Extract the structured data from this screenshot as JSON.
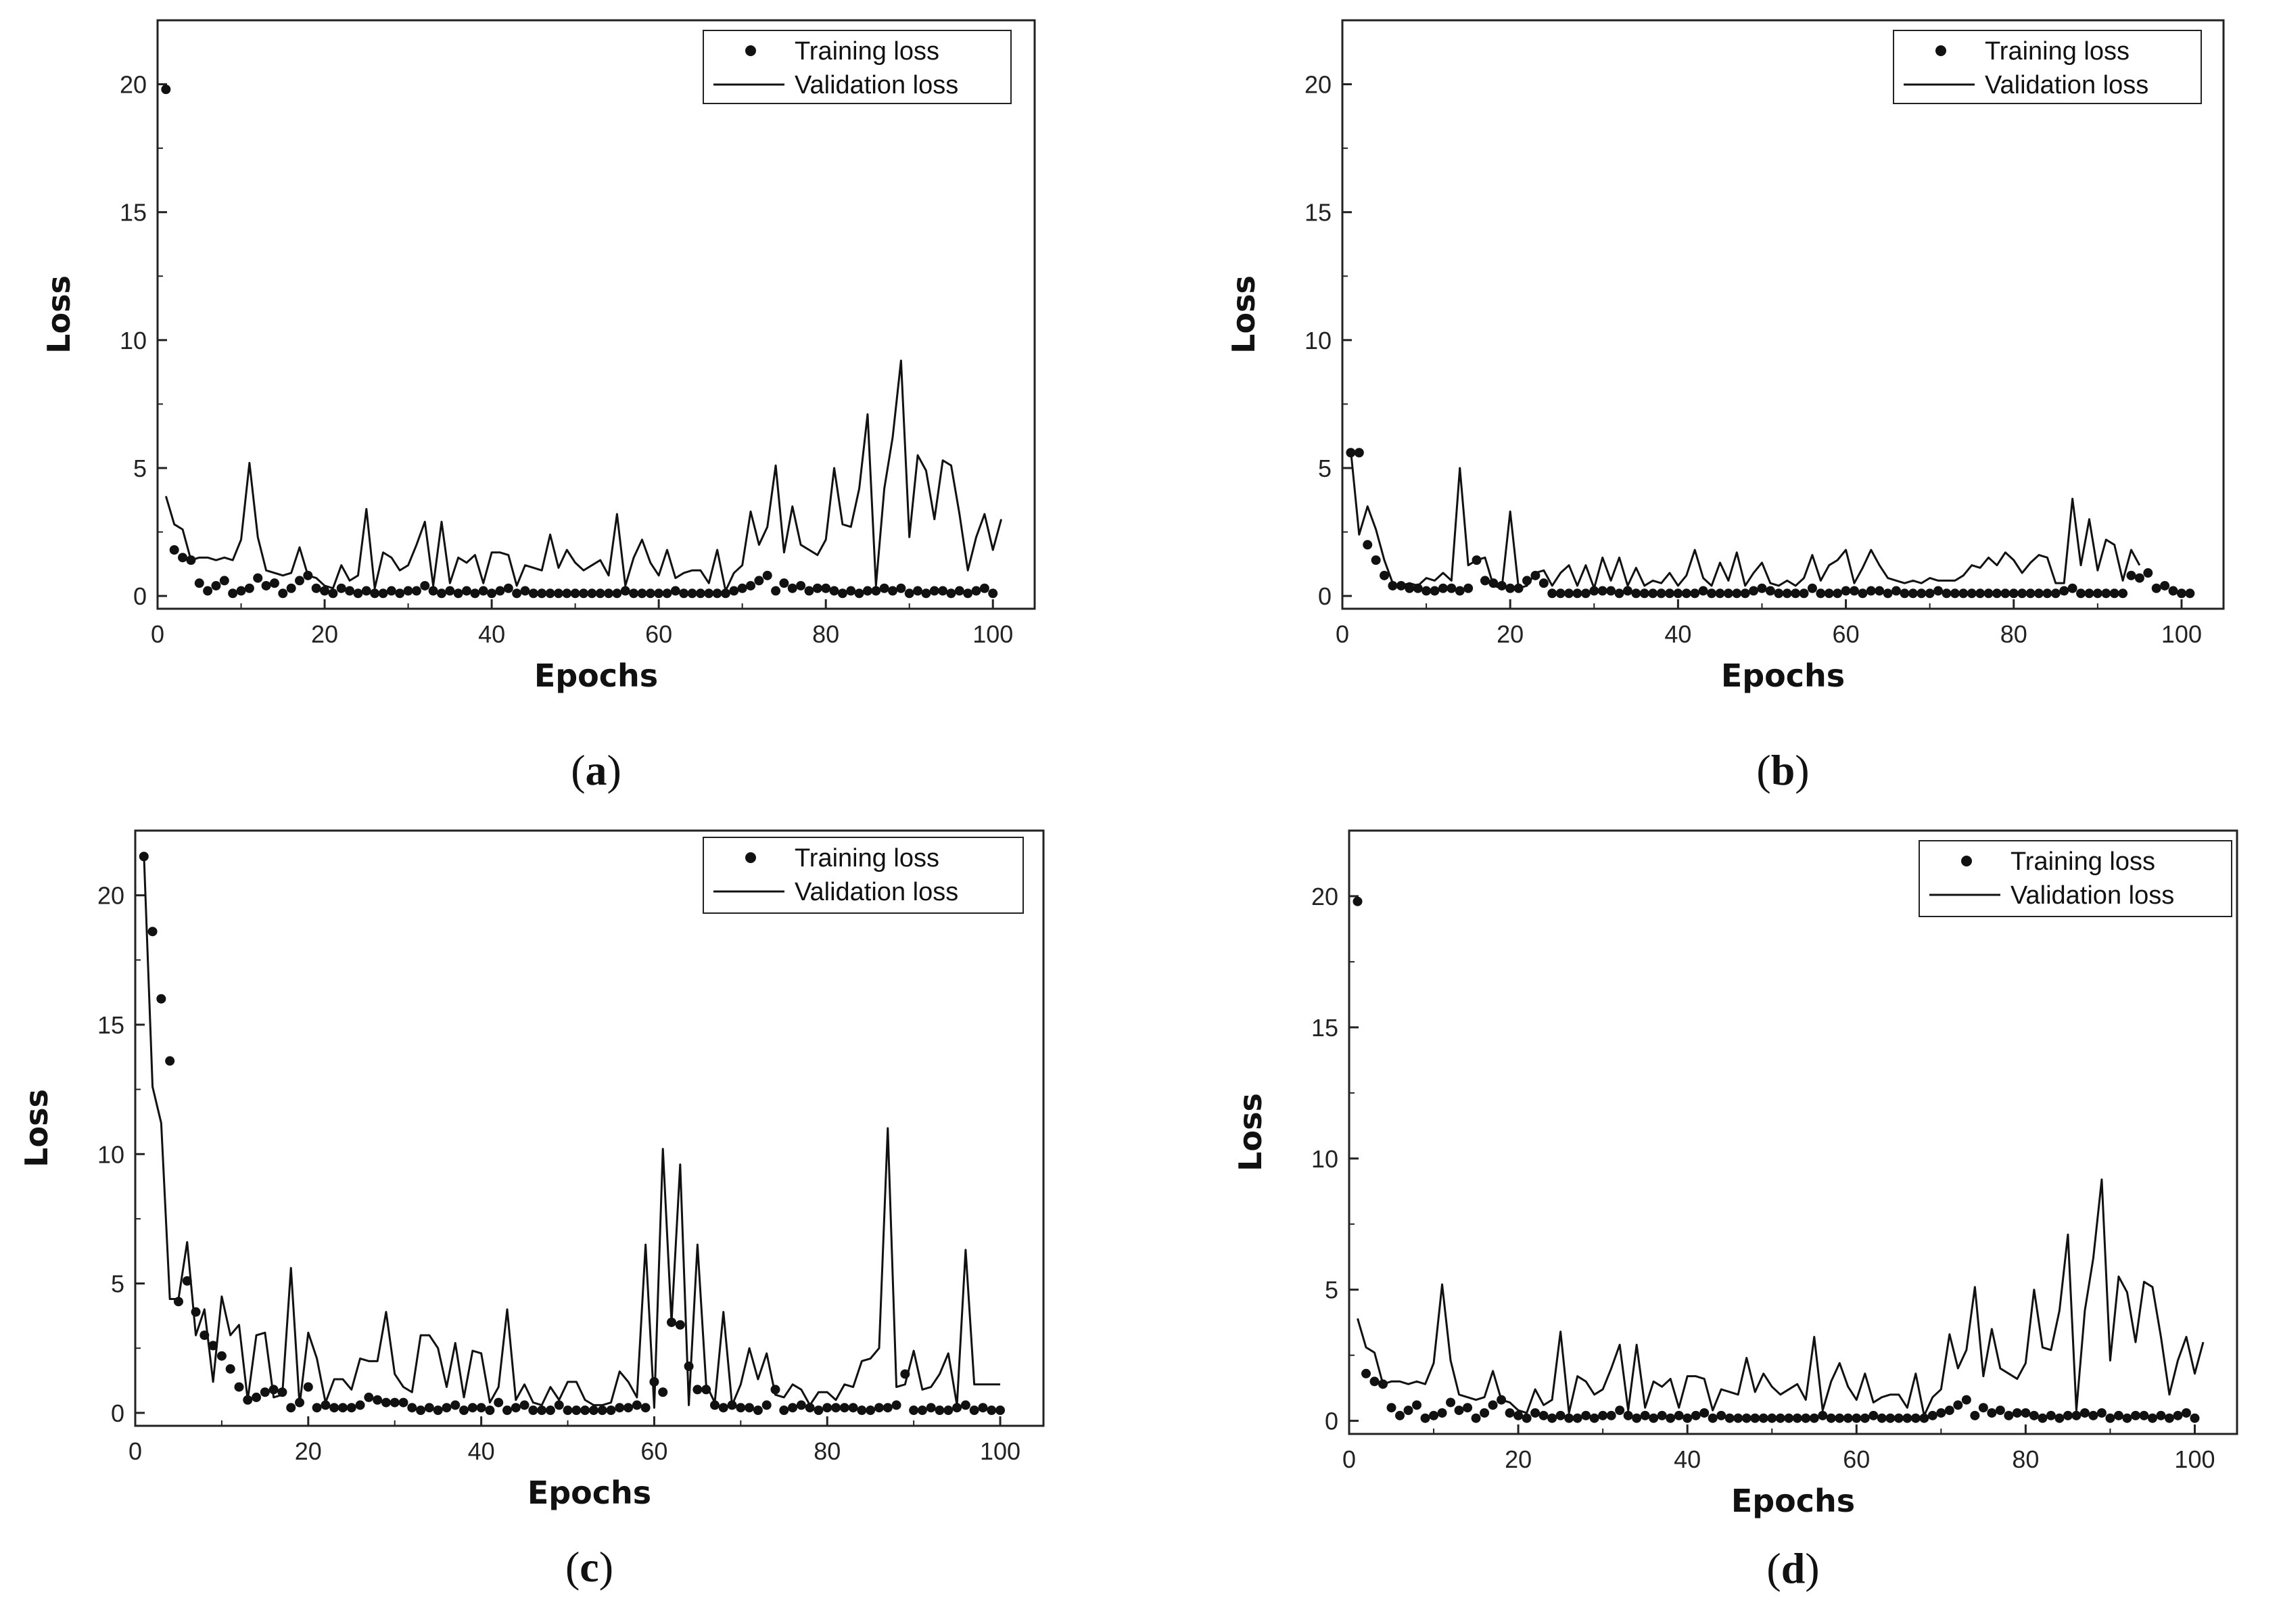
{
  "chart_data": [
    {
      "id": "a",
      "type": "scatter+line",
      "caption_letter": "a",
      "xlabel": "Epochs",
      "ylabel": "Loss",
      "xlim": [
        0,
        105
      ],
      "ylim": [
        -0.5,
        22.5
      ],
      "xticks": [
        "0",
        "20",
        "40",
        "60",
        "80",
        "100"
      ],
      "yticks": [
        "0",
        "5",
        "10",
        "15",
        "20"
      ],
      "legend_position": "top-right",
      "series": [
        {
          "name": "Training loss",
          "style": "dots",
          "values": [
            19.8,
            1.8,
            1.5,
            1.4,
            0.5,
            0.2,
            0.4,
            0.6,
            0.1,
            0.2,
            0.3,
            0.7,
            0.4,
            0.5,
            0.1,
            0.3,
            0.6,
            0.8,
            0.3,
            0.2,
            0.1,
            0.3,
            0.2,
            0.1,
            0.2,
            0.1,
            0.1,
            0.2,
            0.1,
            0.2,
            0.2,
            0.4,
            0.2,
            0.1,
            0.2,
            0.1,
            0.2,
            0.1,
            0.2,
            0.1,
            0.2,
            0.3,
            0.1,
            0.2,
            0.1,
            0.1,
            0.1,
            0.1,
            0.1,
            0.1,
            0.1,
            0.1,
            0.1,
            0.1,
            0.1,
            0.2,
            0.1,
            0.1,
            0.1,
            0.1,
            0.1,
            0.2,
            0.1,
            0.1,
            0.1,
            0.1,
            0.1,
            0.1,
            0.2,
            0.3,
            0.4,
            0.6,
            0.8,
            0.2,
            0.5,
            0.3,
            0.4,
            0.2,
            0.3,
            0.3,
            0.2,
            0.1,
            0.2,
            0.1,
            0.2,
            0.2,
            0.3,
            0.2,
            0.3,
            0.1,
            0.2,
            0.1,
            0.2,
            0.2,
            0.1,
            0.2,
            0.1,
            0.2,
            0.3,
            0.1
          ]
        },
        {
          "name": "Validation loss",
          "style": "line",
          "values": [
            3.9,
            2.8,
            2.6,
            1.4,
            1.5,
            1.5,
            1.4,
            1.5,
            1.4,
            2.2,
            5.2,
            2.3,
            1.0,
            0.9,
            0.8,
            0.9,
            1.9,
            0.8,
            0.7,
            0.4,
            0.3,
            1.2,
            0.6,
            0.8,
            3.4,
            0.3,
            1.7,
            1.5,
            1.0,
            1.2,
            2.0,
            2.9,
            0.4,
            2.9,
            0.5,
            1.5,
            1.3,
            1.6,
            0.5,
            1.7,
            1.7,
            1.6,
            0.4,
            1.2,
            1.1,
            1.0,
            2.4,
            1.1,
            1.8,
            1.3,
            1.0,
            1.2,
            1.4,
            0.8,
            3.2,
            0.4,
            1.5,
            2.2,
            1.3,
            0.8,
            1.8,
            0.7,
            0.9,
            1.0,
            1.0,
            0.5,
            1.8,
            0.2,
            0.9,
            1.2,
            3.3,
            2.0,
            2.7,
            5.1,
            1.7,
            3.5,
            2.0,
            1.8,
            1.6,
            2.2,
            5.0,
            2.8,
            2.7,
            4.2,
            7.1,
            0.4,
            4.2,
            6.2,
            9.2,
            2.3,
            5.5,
            4.9,
            3.0,
            5.3,
            5.1,
            3.2,
            1.0,
            2.3,
            3.2,
            1.8,
            3.0
          ]
        }
      ]
    },
    {
      "id": "b",
      "type": "scatter+line",
      "caption_letter": "b",
      "xlabel": "Epochs",
      "ylabel": "Loss",
      "xlim": [
        0,
        105
      ],
      "ylim": [
        -0.5,
        22.5
      ],
      "xticks": [
        "0",
        "20",
        "40",
        "60",
        "80",
        "100"
      ],
      "yticks": [
        "0",
        "5",
        "10",
        "15",
        "20"
      ],
      "legend_position": "top-right",
      "series": [
        {
          "name": "Training loss",
          "style": "dots",
          "values": [
            5.6,
            5.6,
            2.0,
            1.4,
            0.8,
            0.4,
            0.4,
            0.3,
            0.3,
            0.2,
            0.2,
            0.3,
            0.3,
            0.2,
            0.3,
            1.4,
            0.6,
            0.5,
            0.4,
            0.3,
            0.3,
            0.6,
            0.8,
            0.5,
            0.1,
            0.1,
            0.1,
            0.1,
            0.1,
            0.2,
            0.2,
            0.2,
            0.1,
            0.2,
            0.1,
            0.1,
            0.1,
            0.1,
            0.1,
            0.1,
            0.1,
            0.1,
            0.2,
            0.1,
            0.1,
            0.1,
            0.1,
            0.1,
            0.2,
            0.3,
            0.2,
            0.1,
            0.1,
            0.1,
            0.1,
            0.3,
            0.1,
            0.1,
            0.1,
            0.2,
            0.2,
            0.1,
            0.2,
            0.2,
            0.1,
            0.2,
            0.1,
            0.1,
            0.1,
            0.1,
            0.2,
            0.1,
            0.1,
            0.1,
            0.1,
            0.1,
            0.1,
            0.1,
            0.1,
            0.1,
            0.1,
            0.1,
            0.1,
            0.1,
            0.1,
            0.2,
            0.3,
            0.1,
            0.1,
            0.1,
            0.1,
            0.1,
            0.1,
            0.8,
            0.7,
            0.9,
            0.3,
            0.4,
            0.2,
            0.1,
            0.1
          ]
        },
        {
          "name": "Validation loss",
          "style": "line",
          "values": [
            5.7,
            2.4,
            3.5,
            2.6,
            1.4,
            0.5,
            0.4,
            0.5,
            0.4,
            0.7,
            0.6,
            0.9,
            0.6,
            5.0,
            1.2,
            1.4,
            1.5,
            0.4,
            0.3,
            3.3,
            0.3,
            0.4,
            0.9,
            1.0,
            0.4,
            0.9,
            1.2,
            0.4,
            1.2,
            0.3,
            1.5,
            0.6,
            1.5,
            0.4,
            1.1,
            0.4,
            0.6,
            0.5,
            0.9,
            0.4,
            0.8,
            1.8,
            0.7,
            0.4,
            1.3,
            0.6,
            1.7,
            0.4,
            0.9,
            1.3,
            0.5,
            0.4,
            0.6,
            0.4,
            0.7,
            1.6,
            0.6,
            1.2,
            1.4,
            1.8,
            0.5,
            1.1,
            1.8,
            1.2,
            0.7,
            0.6,
            0.5,
            0.6,
            0.5,
            0.7,
            0.6,
            0.6,
            0.6,
            0.8,
            1.2,
            1.1,
            1.5,
            1.2,
            1.7,
            1.4,
            0.9,
            1.3,
            1.6,
            1.5,
            0.5,
            0.5,
            3.8,
            1.2,
            3.0,
            1.0,
            2.2,
            2.0,
            0.6,
            1.8,
            1.2
          ]
        }
      ]
    },
    {
      "id": "c",
      "type": "scatter+line",
      "caption_letter": "c",
      "xlabel": "Epochs",
      "ylabel": "Loss",
      "xlim": [
        0,
        105
      ],
      "ylim": [
        -0.5,
        22.5
      ],
      "xticks": [
        "0",
        "20",
        "40",
        "60",
        "80",
        "100"
      ],
      "yticks": [
        "0",
        "5",
        "10",
        "15",
        "20"
      ],
      "legend_position": "top-right",
      "series": [
        {
          "name": "Training loss",
          "style": "dots",
          "values": [
            21.5,
            18.6,
            16.0,
            13.6,
            4.3,
            5.1,
            3.9,
            3.0,
            2.6,
            2.2,
            1.7,
            1.0,
            0.5,
            0.6,
            0.8,
            0.9,
            0.8,
            0.2,
            0.4,
            1.0,
            0.2,
            0.3,
            0.2,
            0.2,
            0.2,
            0.3,
            0.6,
            0.5,
            0.4,
            0.4,
            0.4,
            0.2,
            0.1,
            0.2,
            0.1,
            0.2,
            0.3,
            0.1,
            0.2,
            0.2,
            0.1,
            0.4,
            0.1,
            0.2,
            0.3,
            0.1,
            0.1,
            0.1,
            0.3,
            0.1,
            0.1,
            0.1,
            0.1,
            0.1,
            0.1,
            0.2,
            0.2,
            0.3,
            0.2,
            1.2,
            0.8,
            3.5,
            3.4,
            1.8,
            0.9,
            0.9,
            0.3,
            0.2,
            0.3,
            0.2,
            0.2,
            0.1,
            0.3,
            0.9,
            0.1,
            0.2,
            0.3,
            0.2,
            0.1,
            0.2,
            0.2,
            0.2,
            0.2,
            0.1,
            0.1,
            0.2,
            0.2,
            0.3,
            1.5,
            0.1,
            0.1,
            0.2,
            0.1,
            0.1,
            0.2,
            0.3,
            0.1,
            0.2,
            0.1,
            0.1
          ]
        },
        {
          "name": "Validation loss",
          "style": "line",
          "values": [
            21.6,
            12.6,
            11.2,
            4.4,
            4.4,
            6.6,
            3.0,
            4.0,
            1.2,
            4.5,
            3.0,
            3.4,
            0.5,
            3.0,
            3.1,
            0.6,
            0.7,
            5.6,
            0.3,
            3.1,
            2.1,
            0.4,
            1.3,
            1.3,
            0.9,
            2.1,
            2.0,
            2.0,
            3.9,
            1.5,
            1.0,
            0.8,
            3.0,
            3.0,
            2.5,
            1.0,
            2.7,
            0.6,
            2.4,
            2.3,
            0.4,
            1.0,
            4.0,
            0.5,
            1.1,
            0.4,
            0.3,
            1.0,
            0.5,
            1.2,
            1.2,
            0.5,
            0.3,
            0.3,
            0.4,
            1.6,
            1.2,
            0.6,
            6.5,
            0.2,
            10.2,
            3.5,
            9.6,
            0.3,
            6.5,
            1.1,
            0.4,
            3.9,
            0.3,
            1.1,
            2.5,
            1.3,
            2.3,
            0.7,
            0.6,
            1.1,
            0.9,
            0.3,
            0.8,
            0.8,
            0.5,
            1.1,
            1.0,
            2.0,
            2.1,
            2.5,
            11.0,
            1.0,
            1.1,
            2.4,
            0.9,
            1.0,
            1.5,
            2.3,
            0.3,
            6.3,
            1.1,
            1.1,
            1.1,
            1.1
          ]
        }
      ]
    },
    {
      "id": "d",
      "type": "scatter+line",
      "caption_letter": "d",
      "xlabel": "Epochs",
      "ylabel": "Loss",
      "xlim": [
        0,
        105
      ],
      "ylim": [
        -0.5,
        22.5
      ],
      "xticks": [
        "0",
        "20",
        "40",
        "60",
        "80",
        "100"
      ],
      "yticks": [
        "0",
        "5",
        "10",
        "15",
        "20"
      ],
      "legend_position": "top-right",
      "series": [
        {
          "name": "Training loss",
          "style": "dots",
          "values": [
            19.8,
            1.8,
            1.5,
            1.4,
            0.5,
            0.2,
            0.4,
            0.6,
            0.1,
            0.2,
            0.3,
            0.7,
            0.4,
            0.5,
            0.1,
            0.3,
            0.6,
            0.8,
            0.3,
            0.2,
            0.1,
            0.3,
            0.2,
            0.1,
            0.2,
            0.1,
            0.1,
            0.2,
            0.1,
            0.2,
            0.2,
            0.4,
            0.2,
            0.1,
            0.2,
            0.1,
            0.2,
            0.1,
            0.2,
            0.1,
            0.2,
            0.3,
            0.1,
            0.2,
            0.1,
            0.1,
            0.1,
            0.1,
            0.1,
            0.1,
            0.1,
            0.1,
            0.1,
            0.1,
            0.1,
            0.2,
            0.1,
            0.1,
            0.1,
            0.1,
            0.1,
            0.2,
            0.1,
            0.1,
            0.1,
            0.1,
            0.1,
            0.1,
            0.2,
            0.3,
            0.4,
            0.6,
            0.8,
            0.2,
            0.5,
            0.3,
            0.4,
            0.2,
            0.3,
            0.3,
            0.2,
            0.1,
            0.2,
            0.1,
            0.2,
            0.2,
            0.3,
            0.2,
            0.3,
            0.1,
            0.2,
            0.1,
            0.2,
            0.2,
            0.1,
            0.2,
            0.1,
            0.2,
            0.3,
            0.1
          ]
        },
        {
          "name": "Validation loss",
          "style": "line",
          "values": [
            3.9,
            2.8,
            2.6,
            1.4,
            1.5,
            1.5,
            1.4,
            1.5,
            1.4,
            2.2,
            5.2,
            2.3,
            1.0,
            0.9,
            0.8,
            0.9,
            1.9,
            0.8,
            0.7,
            0.4,
            0.3,
            1.2,
            0.6,
            0.8,
            3.4,
            0.3,
            1.7,
            1.5,
            1.0,
            1.2,
            2.0,
            2.9,
            0.4,
            2.9,
            0.5,
            1.5,
            1.3,
            1.6,
            0.5,
            1.7,
            1.7,
            1.6,
            0.4,
            1.2,
            1.1,
            1.0,
            2.4,
            1.1,
            1.8,
            1.3,
            1.0,
            1.2,
            1.4,
            0.8,
            3.2,
            0.4,
            1.5,
            2.2,
            1.3,
            0.8,
            1.8,
            0.7,
            0.9,
            1.0,
            1.0,
            0.5,
            1.8,
            0.2,
            0.9,
            1.2,
            3.3,
            2.0,
            2.7,
            5.1,
            1.7,
            3.5,
            2.0,
            1.8,
            1.6,
            2.2,
            5.0,
            2.8,
            2.7,
            4.2,
            7.1,
            0.4,
            4.2,
            6.2,
            9.2,
            2.3,
            5.5,
            4.9,
            3.0,
            5.3,
            5.1,
            3.2,
            1.0,
            2.3,
            3.2,
            1.8,
            3.0
          ]
        }
      ]
    }
  ]
}
